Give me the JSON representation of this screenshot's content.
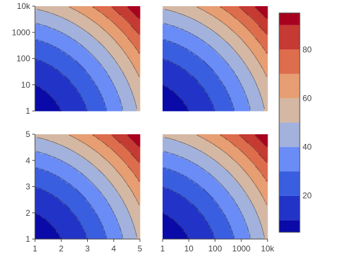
{
  "chart_data": {
    "type": "contour",
    "layout": "2x2 subplots with shared colorbar",
    "z_function_description": "z increases with both x and y (roughly z = 10*(x^2 + y^2)/5 on a 1–5 domain)",
    "contour_levels": [
      10,
      20,
      30,
      40,
      50,
      60,
      70,
      80,
      90
    ],
    "colorscale": [
      "#0a0aa8",
      "#2234c8",
      "#3a5ee0",
      "#6a8cf7",
      "#a2b2dc",
      "#d4b8a4",
      "#e79e72",
      "#dd6d4c",
      "#c53a32",
      "#a8001f"
    ],
    "colorbar": {
      "tick_values": [
        20,
        40,
        60,
        80
      ],
      "range": [
        5,
        95
      ]
    },
    "subplots": [
      {
        "id": "top-left",
        "x_axis": {
          "type": "linear",
          "range": [
            1,
            5
          ],
          "tick_labels": []
        },
        "y_axis": {
          "type": "log",
          "range": [
            1,
            10000
          ],
          "tick_values": [
            1,
            10,
            100,
            1000,
            10000
          ],
          "tick_labels": [
            "1",
            "10",
            "100",
            "1000",
            "10k"
          ]
        }
      },
      {
        "id": "top-right",
        "x_axis": {
          "type": "linear",
          "range": [
            1,
            5
          ],
          "tick_labels": []
        },
        "y_axis": {
          "type": "log",
          "range": [
            1,
            10000
          ],
          "tick_labels": []
        }
      },
      {
        "id": "bottom-left",
        "x_axis": {
          "type": "linear",
          "range": [
            1,
            5
          ],
          "tick_values": [
            1,
            2,
            3,
            4,
            5
          ],
          "tick_labels": [
            "1",
            "2",
            "3",
            "4",
            "5"
          ]
        },
        "y_axis": {
          "type": "linear",
          "range": [
            1,
            5
          ],
          "tick_values": [
            1,
            2,
            3,
            4,
            5
          ],
          "tick_labels": [
            "1",
            "2",
            "3",
            "4",
            "5"
          ]
        }
      },
      {
        "id": "bottom-right",
        "x_axis": {
          "type": "log",
          "range": [
            1,
            10000
          ],
          "tick_values": [
            1,
            10,
            100,
            1000,
            10000
          ],
          "tick_labels": [
            "1",
            "10",
            "100",
            "1000",
            "10k"
          ]
        },
        "y_axis": {
          "type": "linear",
          "range": [
            1,
            5
          ],
          "tick_labels": []
        }
      }
    ]
  }
}
